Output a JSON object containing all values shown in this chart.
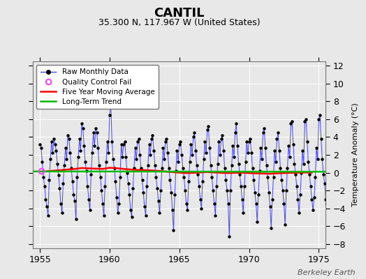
{
  "title": "CANTIL",
  "subtitle": "35.300 N, 117.967 W (United States)",
  "ylabel": "Temperature Anomaly (°C)",
  "watermark": "Berkeley Earth",
  "xlim": [
    1954.5,
    1975.5
  ],
  "ylim": [
    -8.5,
    12.5
  ],
  "yticks": [
    -8,
    -6,
    -4,
    -2,
    0,
    2,
    4,
    6,
    8,
    10,
    12
  ],
  "xticks": [
    1955,
    1960,
    1965,
    1970,
    1975
  ],
  "bg_color": "#e8e8e8",
  "plot_bg_color": "#e8e8e8",
  "line_color": "#4444ff",
  "marker_color": "#000000",
  "moving_avg_color": "#ff0000",
  "trend_color": "#00bb00",
  "qc_color": "#ff44ff",
  "trend_intercept": 0.12,
  "trend_slope": -0.0015,
  "raw_data": [
    1955.0,
    3.2,
    1955.083,
    2.8,
    1955.167,
    1.2,
    1955.25,
    -0.5,
    1955.333,
    -1.5,
    1955.417,
    -3.0,
    1955.5,
    -3.8,
    1955.583,
    -4.8,
    1955.667,
    -0.8,
    1955.75,
    1.5,
    1955.833,
    3.5,
    1955.917,
    2.2,
    1956.0,
    3.8,
    1956.083,
    3.2,
    1956.167,
    2.5,
    1956.25,
    1.0,
    1956.333,
    -0.3,
    1956.417,
    -1.8,
    1956.5,
    -3.5,
    1956.583,
    -4.5,
    1956.667,
    -1.2,
    1956.75,
    0.8,
    1956.833,
    2.8,
    1956.917,
    1.5,
    1957.0,
    4.2,
    1957.083,
    3.8,
    1957.167,
    2.2,
    1957.25,
    0.5,
    1957.333,
    -1.0,
    1957.417,
    -2.5,
    1957.5,
    -3.2,
    1957.583,
    -5.2,
    1957.667,
    -0.5,
    1957.75,
    1.8,
    1957.833,
    3.8,
    1957.917,
    2.5,
    1958.0,
    5.5,
    1958.083,
    5.0,
    1958.167,
    3.0,
    1958.25,
    1.2,
    1958.333,
    0.2,
    1958.417,
    -1.5,
    1958.5,
    -3.0,
    1958.583,
    -4.2,
    1958.667,
    -0.2,
    1958.75,
    2.2,
    1958.833,
    4.5,
    1958.917,
    3.0,
    1959.0,
    5.0,
    1959.083,
    4.5,
    1959.167,
    2.8,
    1959.25,
    0.8,
    1959.333,
    -0.5,
    1959.417,
    -2.0,
    1959.5,
    -3.5,
    1959.583,
    -4.8,
    1959.667,
    -1.5,
    1959.75,
    1.2,
    1959.833,
    3.5,
    1959.917,
    2.2,
    1960.0,
    6.5,
    1960.083,
    8.0,
    1960.167,
    3.5,
    1960.25,
    1.5,
    1960.333,
    0.5,
    1960.417,
    -1.0,
    1960.5,
    -2.8,
    1960.583,
    -4.5,
    1960.667,
    -3.5,
    1960.75,
    -0.5,
    1960.833,
    3.2,
    1960.917,
    1.8,
    1961.0,
    3.2,
    1961.083,
    3.5,
    1961.167,
    1.8,
    1961.25,
    0.0,
    1961.333,
    -1.2,
    1961.417,
    -2.5,
    1961.5,
    -4.2,
    1961.583,
    -5.0,
    1961.667,
    -1.8,
    1961.75,
    0.5,
    1961.833,
    2.8,
    1961.917,
    1.5,
    1962.0,
    3.5,
    1962.083,
    3.8,
    1962.167,
    2.0,
    1962.25,
    0.5,
    1962.333,
    -0.8,
    1962.417,
    -2.2,
    1962.5,
    -3.8,
    1962.583,
    -4.8,
    1962.667,
    -1.5,
    1962.75,
    0.8,
    1962.833,
    3.2,
    1962.917,
    2.0,
    1963.0,
    3.8,
    1963.083,
    4.2,
    1963.167,
    2.5,
    1963.25,
    0.8,
    1963.333,
    -0.5,
    1963.417,
    -1.8,
    1963.5,
    -3.2,
    1963.583,
    -4.5,
    1963.667,
    -2.0,
    1963.75,
    0.5,
    1963.833,
    2.8,
    1963.917,
    1.5,
    1964.0,
    3.5,
    1964.083,
    3.8,
    1964.167,
    2.2,
    1964.25,
    0.5,
    1964.333,
    -0.8,
    1964.417,
    -2.2,
    1964.5,
    -4.2,
    1964.583,
    -6.5,
    1964.667,
    -2.5,
    1964.75,
    0.2,
    1964.833,
    2.5,
    1964.917,
    1.2,
    1965.0,
    3.2,
    1965.083,
    3.5,
    1965.167,
    2.0,
    1965.25,
    0.5,
    1965.333,
    -0.5,
    1965.417,
    -2.0,
    1965.5,
    -3.5,
    1965.583,
    -4.2,
    1965.667,
    -1.0,
    1965.75,
    1.2,
    1965.833,
    3.2,
    1965.917,
    2.0,
    1966.0,
    4.0,
    1966.083,
    4.5,
    1966.167,
    2.5,
    1966.25,
    0.8,
    1966.333,
    -0.2,
    1966.417,
    -1.5,
    1966.5,
    -3.0,
    1966.583,
    -4.0,
    1966.667,
    -1.0,
    1966.75,
    1.5,
    1966.833,
    3.5,
    1966.917,
    2.2,
    1967.0,
    4.8,
    1967.083,
    5.2,
    1967.167,
    2.8,
    1967.25,
    0.8,
    1967.333,
    -0.5,
    1967.417,
    -2.0,
    1967.5,
    -3.5,
    1967.583,
    -4.8,
    1967.667,
    -1.5,
    1967.75,
    1.0,
    1967.833,
    3.5,
    1967.917,
    2.0,
    1968.0,
    3.8,
    1968.083,
    4.2,
    1968.167,
    2.5,
    1968.25,
    0.5,
    1968.333,
    -0.8,
    1968.417,
    -2.0,
    1968.5,
    -3.5,
    1968.583,
    -7.2,
    1968.667,
    -2.0,
    1968.75,
    0.8,
    1968.833,
    3.0,
    1968.917,
    1.8,
    1969.0,
    4.5,
    1969.083,
    5.5,
    1969.167,
    3.0,
    1969.25,
    1.0,
    1969.333,
    -0.2,
    1969.417,
    -1.5,
    1969.5,
    -3.0,
    1969.583,
    -4.5,
    1969.667,
    -1.5,
    1969.75,
    1.2,
    1969.833,
    3.5,
    1969.917,
    2.2,
    1970.0,
    3.5,
    1970.083,
    3.8,
    1970.167,
    2.2,
    1970.25,
    0.5,
    1970.333,
    -0.8,
    1970.417,
    -2.2,
    1970.5,
    -3.5,
    1970.583,
    -5.5,
    1970.667,
    -2.5,
    1970.75,
    0.2,
    1970.833,
    2.8,
    1970.917,
    1.5,
    1971.0,
    4.5,
    1971.083,
    5.0,
    1971.167,
    2.8,
    1971.25,
    0.8,
    1971.333,
    -0.5,
    1971.417,
    -2.2,
    1971.5,
    -3.8,
    1971.583,
    -6.2,
    1971.667,
    -3.0,
    1971.75,
    -0.5,
    1971.833,
    2.5,
    1971.917,
    1.2,
    1972.0,
    3.8,
    1972.083,
    4.5,
    1972.167,
    2.5,
    1972.25,
    0.5,
    1972.333,
    -0.8,
    1972.417,
    -2.0,
    1972.5,
    -3.5,
    1972.583,
    -5.8,
    1972.667,
    -2.0,
    1972.75,
    0.5,
    1972.833,
    3.0,
    1972.917,
    1.8,
    1973.0,
    5.5,
    1973.083,
    5.8,
    1973.167,
    3.2,
    1973.25,
    1.0,
    1973.333,
    -0.2,
    1973.417,
    -1.5,
    1973.5,
    -3.0,
    1973.583,
    -4.5,
    1973.667,
    -2.5,
    1973.75,
    0.0,
    1973.833,
    2.5,
    1973.917,
    1.0,
    1974.0,
    5.8,
    1974.083,
    6.0,
    1974.167,
    3.5,
    1974.25,
    1.2,
    1974.333,
    -0.2,
    1974.417,
    -1.5,
    1974.5,
    -3.0,
    1974.583,
    -4.2,
    1974.667,
    -2.8,
    1974.75,
    -0.5,
    1974.833,
    2.8,
    1974.917,
    1.5,
    1975.0,
    6.0,
    1975.083,
    6.5,
    1975.167,
    3.8,
    1975.25,
    1.5,
    1975.333,
    -0.2,
    1975.417,
    -1.2,
    1975.5,
    -3.0,
    1975.583,
    -3.5
  ],
  "qc_fail_points": [
    [
      1955.083,
      0.2
    ]
  ],
  "moving_avg_x": [
    1955.5,
    1956.0,
    1956.5,
    1957.0,
    1957.5,
    1958.0,
    1958.5,
    1959.0,
    1959.5,
    1960.0,
    1960.5,
    1961.0,
    1961.5,
    1962.0,
    1962.5,
    1963.0,
    1963.5,
    1964.0,
    1964.5,
    1965.0,
    1965.5,
    1966.0,
    1966.5,
    1967.0,
    1967.5,
    1968.0,
    1968.5,
    1969.0,
    1969.5,
    1970.0,
    1970.5,
    1971.0,
    1971.5,
    1972.0,
    1972.5,
    1973.0,
    1973.5,
    1974.0,
    1974.5
  ],
  "moving_avg_y": [
    0.15,
    0.22,
    0.28,
    0.35,
    0.42,
    0.52,
    0.48,
    0.45,
    0.42,
    0.55,
    0.5,
    0.42,
    0.35,
    0.3,
    0.28,
    0.25,
    0.2,
    0.12,
    0.05,
    0.0,
    -0.05,
    -0.02,
    0.02,
    0.05,
    0.02,
    -0.02,
    -0.05,
    -0.02,
    0.0,
    -0.05,
    -0.08,
    -0.1,
    -0.12,
    -0.08,
    -0.05,
    -0.02,
    0.0,
    0.02,
    0.0
  ]
}
